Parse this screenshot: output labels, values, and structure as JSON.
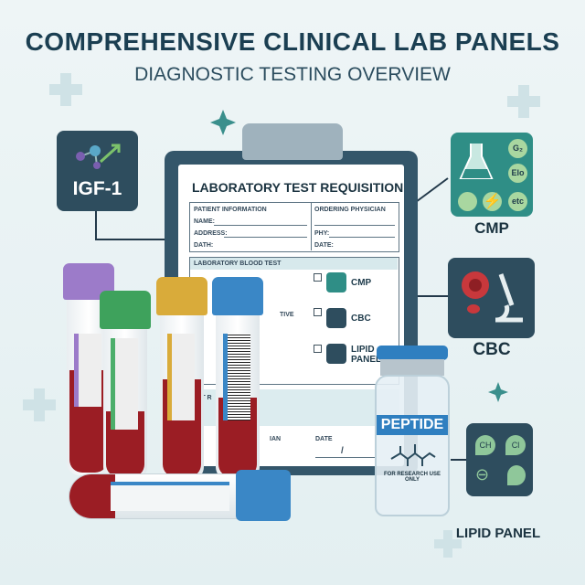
{
  "header": {
    "title": "COMPREHENSIVE CLINICAL LAB PANELS",
    "subtitle": "DIAGNOSTIC TESTING OVERVIEW"
  },
  "igf_tile": {
    "label": "IGF-1",
    "icon": "molecule-arrow-icon"
  },
  "form": {
    "title": "LABORATORY TEST REQUISITION",
    "patient_info": "PATIENT INFORMATION",
    "name": "NAME:",
    "address": "ADDRESS:",
    "dath": "DATH:",
    "ordering_physician": "ORDERING PHYSICIAN",
    "phy": "PHY:",
    "date": "DATE:",
    "blood_test": "LABORATORY BLOOD TEST",
    "partial_item": "TIVE",
    "tests": [
      {
        "label": "CMP",
        "icon": "flask-icon"
      },
      {
        "label": "CBC",
        "icon": "microscope-icon"
      },
      {
        "label": "LIPID PANEL",
        "icon": "droplets-icon"
      }
    ],
    "section2": "EST R",
    "bottom_physician": "IAN",
    "bottom_date": "DATE",
    "date_sep": "/"
  },
  "cmp_tile": {
    "label": "CMP",
    "badges": [
      "G₂",
      "Elo",
      "etc"
    ]
  },
  "cbc_tile": {
    "label": "CBC"
  },
  "lipid_tile": {
    "label": "LIPID PANEL",
    "badges": [
      "CH",
      "Cl"
    ]
  },
  "vial": {
    "label": "PEPTIDE",
    "note": "FOR RESEARCH USE ONLY"
  },
  "colors": {
    "navy": "#1b3f52",
    "teal": "#2f8e86",
    "slate": "#2e4d5e",
    "blood": "#9b1d24",
    "blue": "#2f7fc0"
  }
}
